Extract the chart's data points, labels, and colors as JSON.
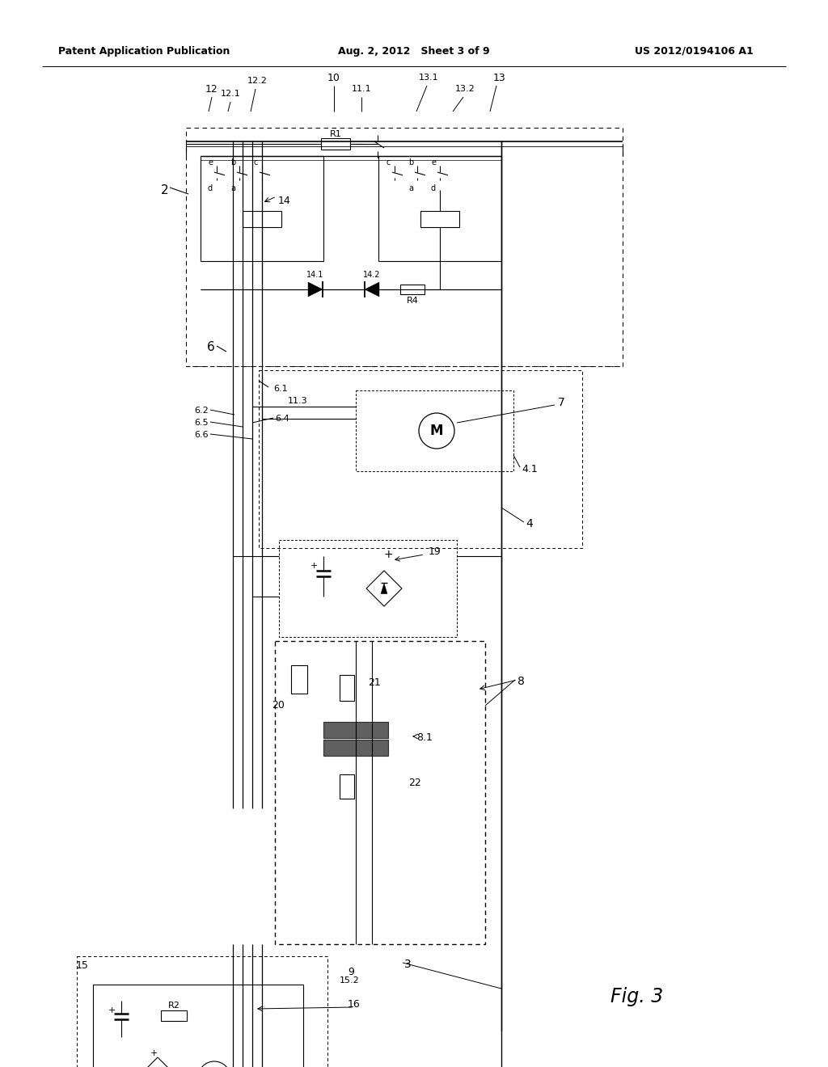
{
  "bg_color": "#ffffff",
  "fig_width": 10.24,
  "fig_height": 13.2,
  "header_left": "Patent Application Publication",
  "header_center": "Aug. 2, 2012   Sheet 3 of 9",
  "header_right": "US 2012/0194106 A1"
}
